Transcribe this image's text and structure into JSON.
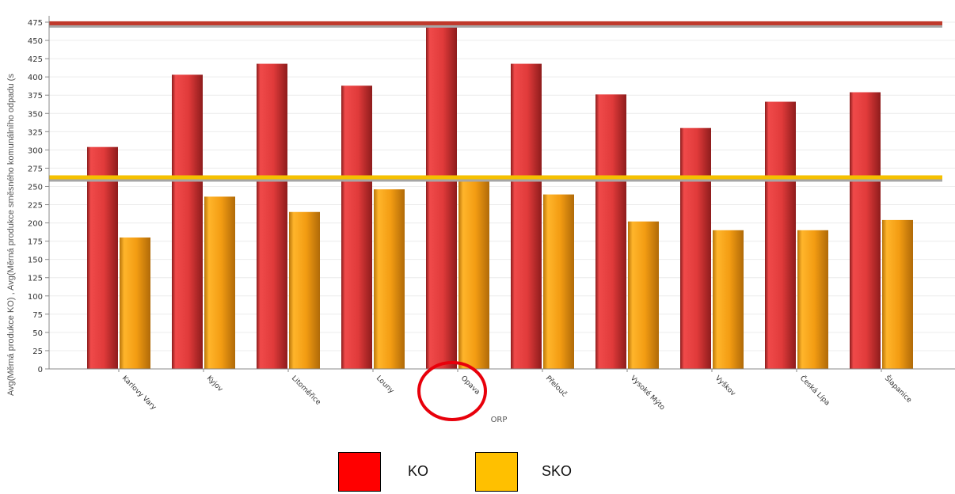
{
  "chart_data": {
    "type": "bar",
    "ylabel": "Avg(Měrná produkce KO) , Avg(Měrná produkce směsného komunálního odpadu (s",
    "xlabel": "ORP",
    "ylim": [
      0,
      475
    ],
    "yticks": [
      0,
      25,
      50,
      75,
      100,
      125,
      150,
      175,
      200,
      225,
      250,
      275,
      300,
      325,
      350,
      375,
      400,
      425,
      450,
      475
    ],
    "categories": [
      "Karlovy Vary",
      "Kyjov",
      "Litoměřice",
      "Louny",
      "Opava",
      "Přelouč",
      "Vysoké Mýto",
      "Vyškov",
      "Česká Lípa",
      "Šlapanice"
    ],
    "series": [
      {
        "name": "KO",
        "color": "#e8262b",
        "values": [
          304,
          403,
          418,
          388,
          469,
          418,
          376,
          330,
          366,
          379
        ]
      },
      {
        "name": "SKO",
        "color": "#f39c12",
        "values": [
          180,
          236,
          215,
          246,
          257,
          239,
          202,
          190,
          190,
          204
        ]
      }
    ],
    "reference_lines": [
      {
        "series": "KO",
        "value": 474,
        "color": "#c0392b"
      },
      {
        "series": "SKO",
        "value": 263,
        "color": "#f5c000"
      }
    ],
    "highlight_category": "Opava",
    "grid": true
  },
  "legend": {
    "items": [
      {
        "label": "KO",
        "color": "#ff0000"
      },
      {
        "label": "SKO",
        "color": "#ffc000"
      }
    ]
  }
}
